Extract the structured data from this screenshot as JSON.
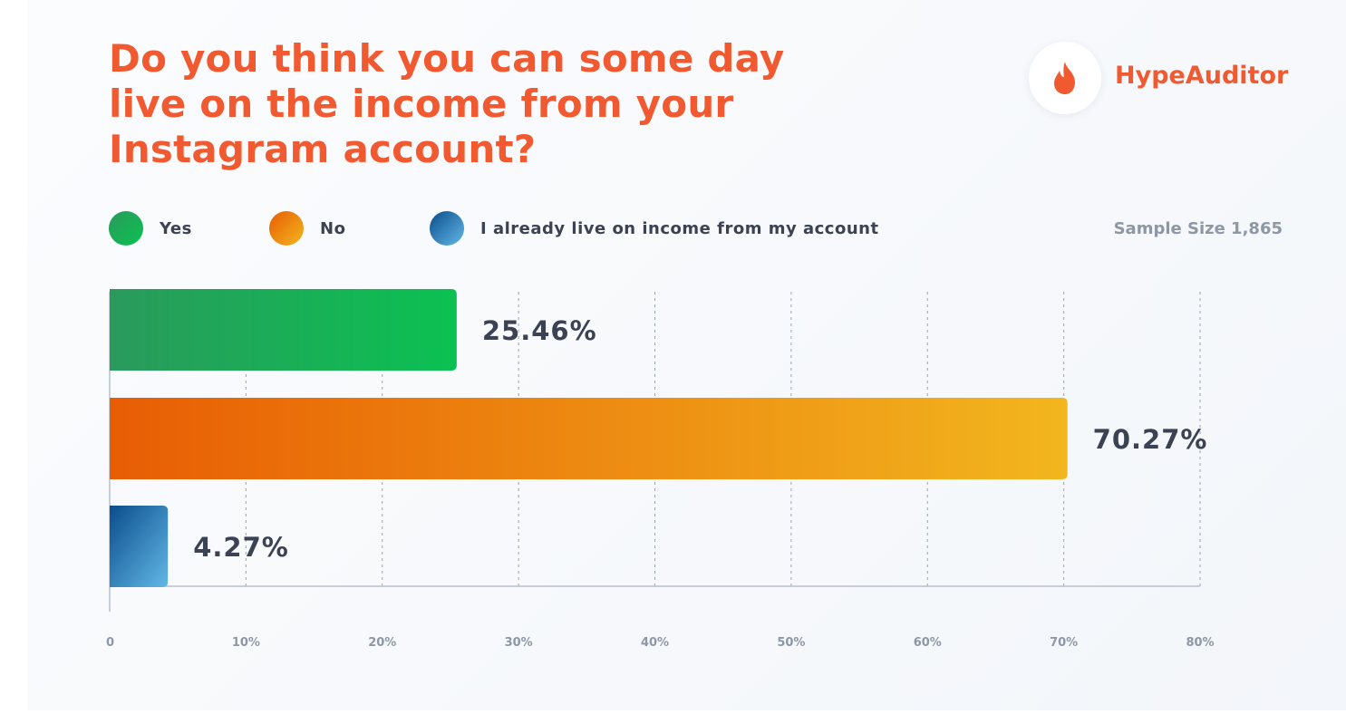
{
  "title": "Do you think you can some day live on the income from your Instagram account?",
  "brand": {
    "name": "HypeAuditor",
    "icon": "flame-icon",
    "color": "#f15a30"
  },
  "sample_size_label": "Sample Size 1,865",
  "legend": [
    {
      "label": "Yes",
      "colors": [
        "#2a9a5c",
        "#0bc152"
      ]
    },
    {
      "label": "No",
      "colors": [
        "#e85d04",
        "#f2b61e"
      ]
    },
    {
      "label": "I already live on income from my account",
      "colors": [
        "#0a4d8c",
        "#62b8e6"
      ]
    }
  ],
  "chart_data": {
    "type": "bar",
    "orientation": "horizontal",
    "categories": [
      "Yes",
      "No",
      "I already live on income from my account"
    ],
    "values": [
      25.46,
      70.27,
      4.27
    ],
    "value_labels": [
      "25.46%",
      "70.27%",
      "4.27%"
    ],
    "xlim": [
      0,
      80
    ],
    "x_ticks": [
      0,
      10,
      20,
      30,
      40,
      50,
      60,
      70,
      80
    ],
    "x_tick_labels": [
      "0",
      "10%",
      "20%",
      "30%",
      "40%",
      "50%",
      "60%",
      "70%",
      "80%"
    ],
    "grid": "vertical dashed",
    "legend_position": "top-left"
  }
}
